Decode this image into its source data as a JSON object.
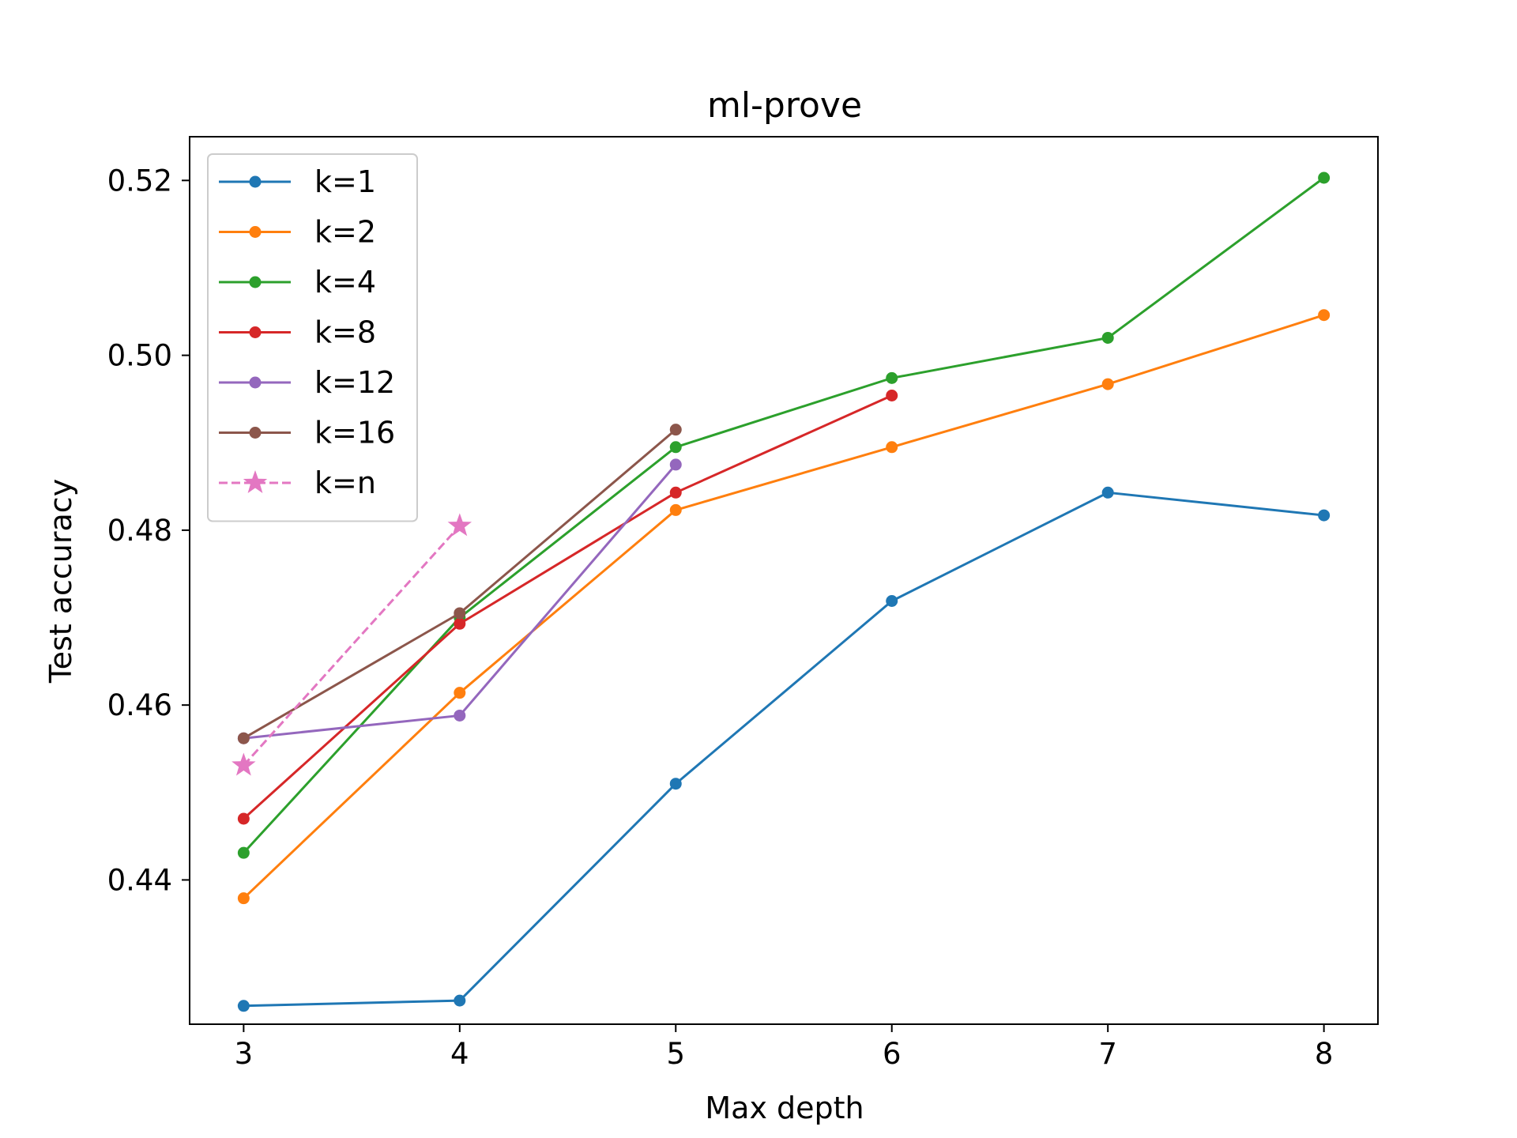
{
  "chart_data": {
    "type": "line",
    "title": "ml-prove",
    "xlabel": "Max depth",
    "ylabel": "Test accuracy",
    "xlim": [
      2.75,
      8.25
    ],
    "ylim": [
      0.4235,
      0.525
    ],
    "xticks": [
      3,
      4,
      5,
      6,
      7,
      8
    ],
    "yticks": [
      0.44,
      0.46,
      0.48,
      0.5,
      0.52
    ],
    "ytick_labels": [
      "0.44",
      "0.46",
      "0.48",
      "0.50",
      "0.52"
    ],
    "grid": false,
    "legend_position": "top-left",
    "series": [
      {
        "name": "k=1",
        "color": "#1f77b4",
        "marker": "circle",
        "dashed": false,
        "x": [
          3,
          4,
          5,
          6,
          7,
          8
        ],
        "y": [
          0.4256,
          0.4262,
          0.451,
          0.4719,
          0.4843,
          0.4817
        ]
      },
      {
        "name": "k=2",
        "color": "#ff7f0e",
        "marker": "circle",
        "dashed": false,
        "x": [
          3,
          4,
          5,
          6,
          7,
          8
        ],
        "y": [
          0.4379,
          0.4614,
          0.4823,
          0.4895,
          0.4967,
          0.5046
        ]
      },
      {
        "name": "k=4",
        "color": "#2ca02c",
        "marker": "circle",
        "dashed": false,
        "x": [
          3,
          4,
          5,
          6,
          7,
          8
        ],
        "y": [
          0.4431,
          0.47,
          0.4895,
          0.4974,
          0.502,
          0.5203
        ]
      },
      {
        "name": "k=8",
        "color": "#d62728",
        "marker": "circle",
        "dashed": false,
        "x": [
          3,
          4,
          5,
          6
        ],
        "y": [
          0.447,
          0.4693,
          0.4843,
          0.4954
        ]
      },
      {
        "name": "k=12",
        "color": "#9467bd",
        "marker": "circle",
        "dashed": false,
        "x": [
          3,
          4,
          5
        ],
        "y": [
          0.4562,
          0.4588,
          0.4875
        ]
      },
      {
        "name": "k=16",
        "color": "#8c564b",
        "marker": "circle",
        "dashed": false,
        "x": [
          3,
          4,
          5
        ],
        "y": [
          0.4562,
          0.4705,
          0.4915
        ]
      },
      {
        "name": "k=n",
        "color": "#e377c2",
        "marker": "star",
        "dashed": true,
        "x": [
          3,
          4
        ],
        "y": [
          0.4531,
          0.4805
        ]
      }
    ]
  }
}
